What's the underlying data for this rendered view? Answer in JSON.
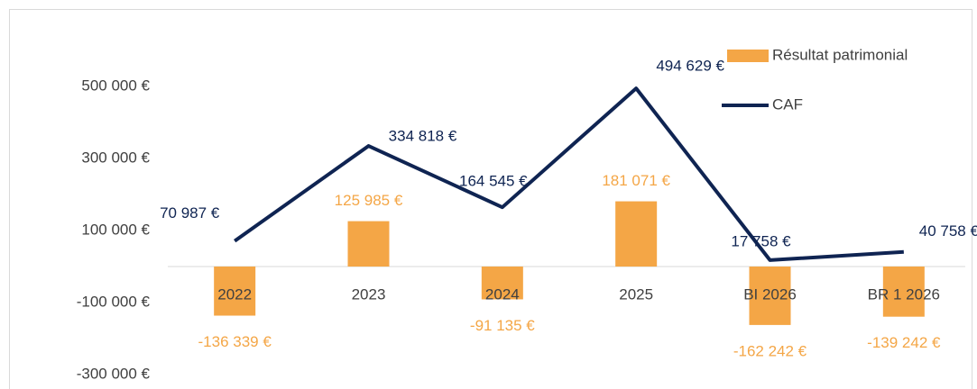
{
  "chart_data": {
    "type": "combo",
    "categories": [
      "2022",
      "2023",
      "2024",
      "2025",
      "BI 2026",
      "BR 1 2026"
    ],
    "series": [
      {
        "name": "Résultat patrimonial",
        "type": "bar",
        "color": "#f4a646",
        "values": [
          -136339,
          125985,
          -91135,
          181071,
          -162242,
          -139242
        ],
        "value_labels": [
          "-136 339 €",
          "125 985 €",
          "-91 135 €",
          "181 071 €",
          "-162 242 €",
          "-139 242 €"
        ]
      },
      {
        "name": "CAF",
        "type": "line",
        "color": "#0f2452",
        "values": [
          70987,
          334818,
          164545,
          494629,
          17758,
          40758
        ],
        "value_labels": [
          "70 987 €",
          "334 818 €",
          "164 545 €",
          "494 629 €",
          "17 758 €",
          "40 758 €"
        ]
      }
    ],
    "ylim": [
      -300000,
      700000
    ],
    "yticks": [
      {
        "value": 500000,
        "label": "500 000 €"
      },
      {
        "value": 300000,
        "label": "300 000 €"
      },
      {
        "value": 100000,
        "label": "100 000 €"
      },
      {
        "value": -100000,
        "label": "-100 000 €"
      },
      {
        "value": -300000,
        "label": "-300 000 €"
      }
    ],
    "grid": false,
    "legend": "top-right"
  }
}
